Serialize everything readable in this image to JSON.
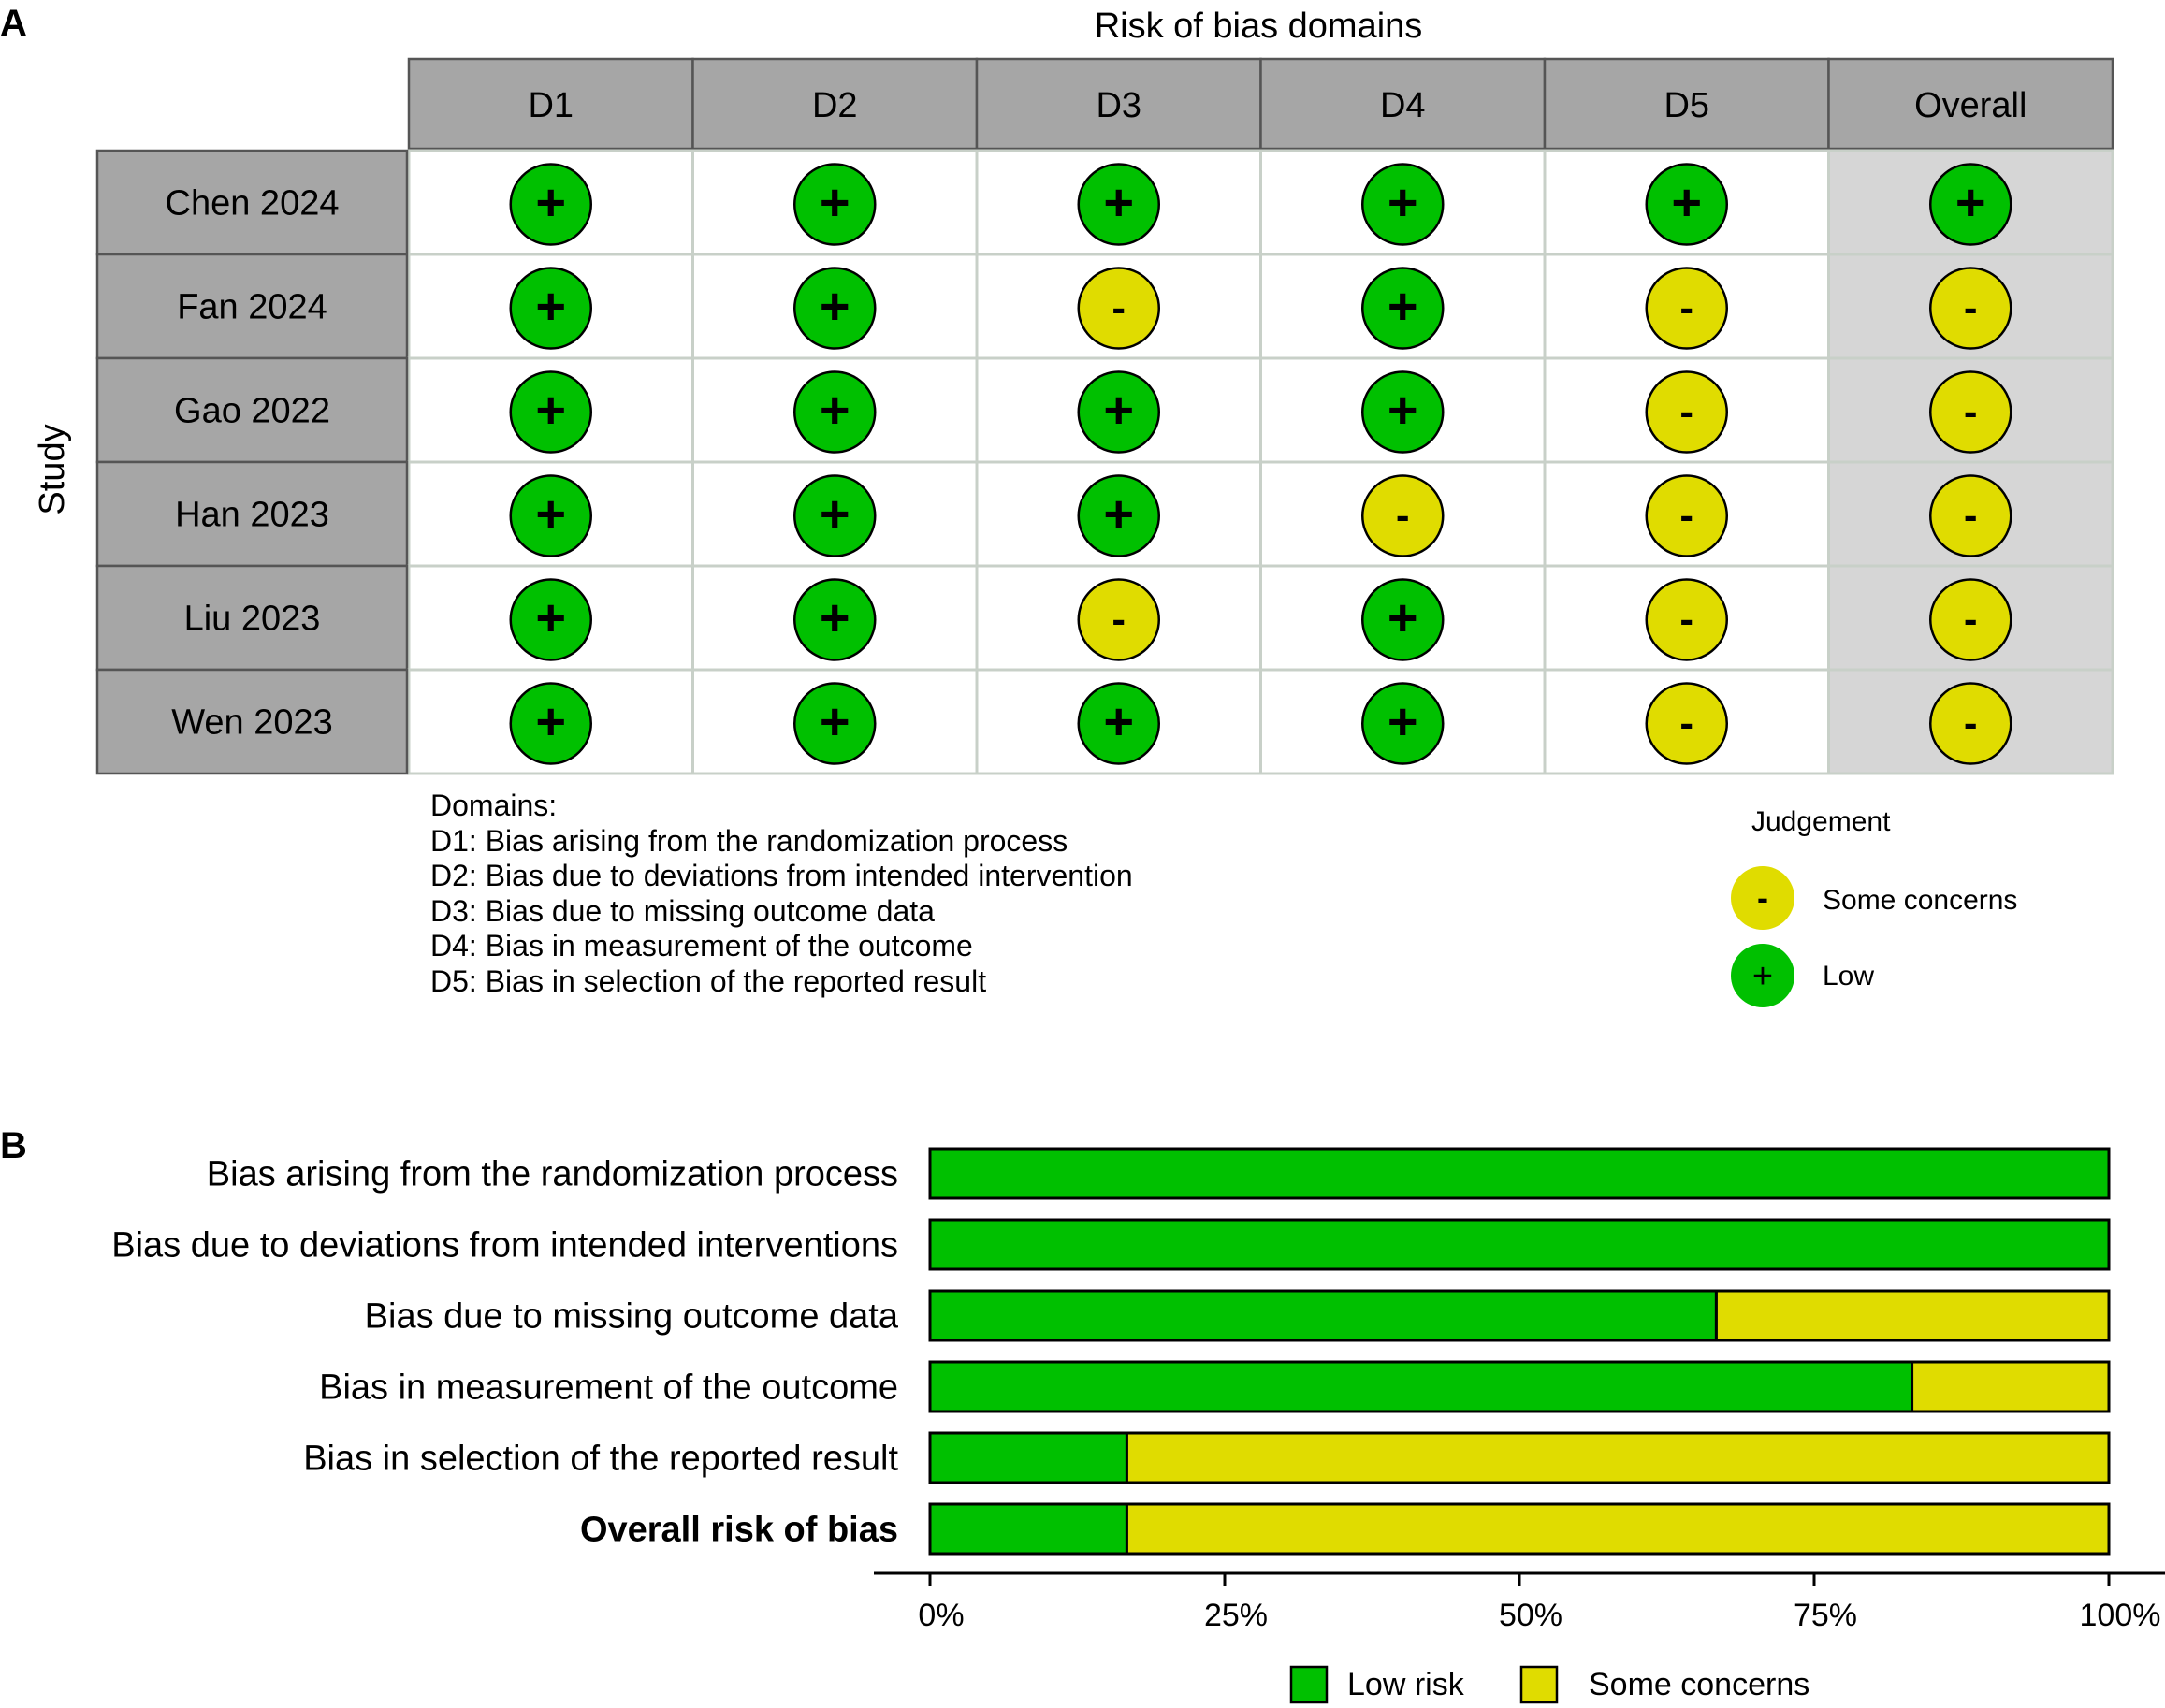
{
  "panel_a": {
    "label": "A",
    "title": "Risk of bias domains",
    "y_label": "Study",
    "domain_headers": [
      "D1",
      "D2",
      "D3",
      "D4",
      "D5",
      "Overall"
    ],
    "domains_heading": "Domains:",
    "domain_notes": [
      "D1: Bias arising from the randomization process",
      "D2: Bias due to deviations from intended intervention",
      "D3: Bias due to missing outcome data",
      "D4: Bias in measurement of the outcome",
      "D5: Bias in selection of the reported result"
    ],
    "legend_title": "Judgement",
    "legend_items": [
      {
        "symbol": "-",
        "label": "Some concerns",
        "color": "#e0dc00"
      },
      {
        "symbol": "+",
        "label": "Low",
        "color": "#00c000"
      }
    ]
  },
  "panel_b": {
    "label": "B",
    "x_ticks": [
      "0%",
      "25%",
      "50%",
      "75%",
      "100%"
    ],
    "legend": [
      {
        "label": "Low risk",
        "color": "#00c000"
      },
      {
        "label": "Some concerns",
        "color": "#e0dc00"
      }
    ]
  },
  "colors": {
    "low": "#00c000",
    "some": "#e0dc00",
    "header_bg": "#a6a6a6",
    "overall_bg": "#d6d6d6",
    "grid": "#c8d0c8"
  },
  "chart_data": [
    {
      "type": "table",
      "title": "Risk of bias domains",
      "rows": [
        "Chen 2024",
        "Fan 2024",
        "Gao 2022",
        "Han 2023",
        "Liu 2023",
        "Wen 2023"
      ],
      "columns": [
        "D1",
        "D2",
        "D3",
        "D4",
        "D5",
        "Overall"
      ],
      "judgements": [
        [
          "+",
          "+",
          "+",
          "+",
          "+",
          "+"
        ],
        [
          "+",
          "+",
          "-",
          "+",
          "-",
          "-"
        ],
        [
          "+",
          "+",
          "+",
          "+",
          "-",
          "-"
        ],
        [
          "+",
          "+",
          "+",
          "-",
          "-",
          "-"
        ],
        [
          "+",
          "+",
          "-",
          "+",
          "-",
          "-"
        ],
        [
          "+",
          "+",
          "+",
          "+",
          "-",
          "-"
        ]
      ]
    },
    {
      "type": "bar",
      "orientation": "horizontal",
      "stacked": true,
      "categories": [
        "Bias arising from the randomization process",
        "Bias due to deviations from intended interventions",
        "Bias due to missing outcome data",
        "Bias in measurement of the outcome",
        "Bias in selection of the reported result",
        "Overall risk of bias"
      ],
      "bold_categories": [
        "Overall risk of bias"
      ],
      "series": [
        {
          "name": "Low risk",
          "values": [
            100,
            100,
            66.7,
            83.3,
            16.7,
            16.7
          ]
        },
        {
          "name": "Some concerns",
          "values": [
            0,
            0,
            33.3,
            16.7,
            83.3,
            83.3
          ]
        }
      ],
      "xlim": [
        0,
        100
      ]
    }
  ]
}
